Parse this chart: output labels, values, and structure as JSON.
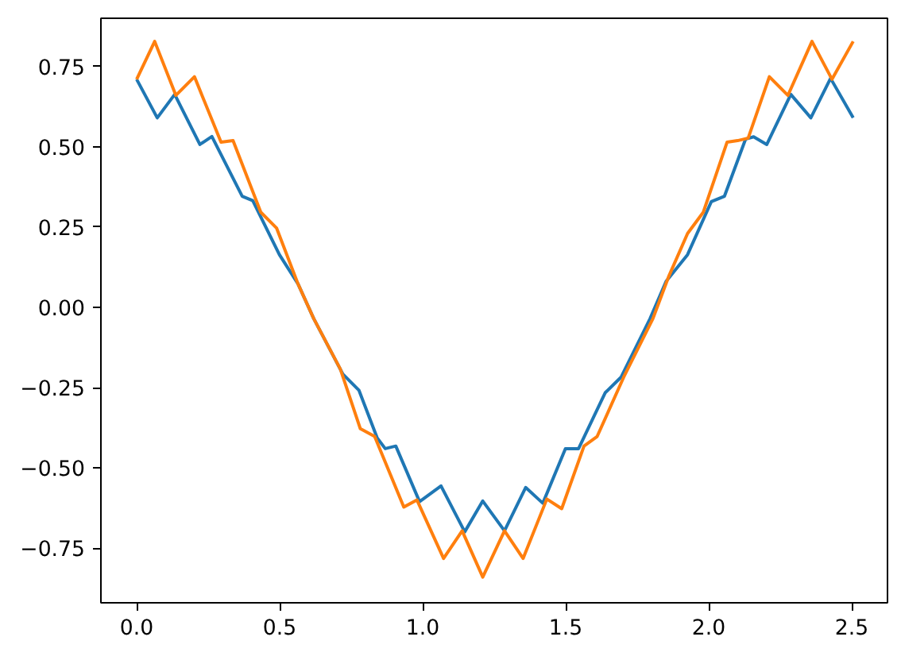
{
  "chart_data": {
    "type": "line",
    "xlim": [
      -0.125,
      2.625
    ],
    "ylim": [
      -0.92,
      0.9
    ],
    "xticks": [
      {
        "value": 0,
        "label": "0.0"
      },
      {
        "value": 0.5,
        "label": "0.5"
      },
      {
        "value": 1,
        "label": "1.0"
      },
      {
        "value": 1.5,
        "label": "1.5"
      },
      {
        "value": 2,
        "label": "2.0"
      },
      {
        "value": 2.5,
        "label": "2.5"
      }
    ],
    "yticks": [
      {
        "value": -0.75,
        "label": "−0.75"
      },
      {
        "value": -0.5,
        "label": "−0.50"
      },
      {
        "value": -0.25,
        "label": "−0.25"
      },
      {
        "value": 0,
        "label": "0.00"
      },
      {
        "value": 0.25,
        "label": "0.25"
      },
      {
        "value": 0.5,
        "label": "0.50"
      },
      {
        "value": 0.75,
        "label": "0.75"
      }
    ],
    "grid": false,
    "marker": "none",
    "line_style": "solid",
    "series": [
      {
        "color": "#1f77b4",
        "x": [
          0,
          0.072,
          0.133,
          0.221,
          0.263,
          0.369,
          0.406,
          0.499,
          0.564,
          0.619,
          0.721,
          0.777,
          0.841,
          0.869,
          0.906,
          0.989,
          1.064,
          1.147,
          1.21,
          1.286,
          1.36,
          1.42,
          1.499,
          1.545,
          1.638,
          1.694,
          1.795,
          1.851,
          1.926,
          2.009,
          2.055,
          2.129,
          2.157,
          2.203,
          2.287,
          2.357,
          2.426,
          2.505
        ],
        "values": [
          0.71,
          0.59,
          0.663,
          0.507,
          0.532,
          0.346,
          0.332,
          0.164,
          0.073,
          -0.035,
          -0.208,
          -0.258,
          -0.407,
          -0.44,
          -0.432,
          -0.605,
          -0.556,
          -0.699,
          -0.603,
          -0.696,
          -0.561,
          -0.61,
          -0.44,
          -0.44,
          -0.266,
          -0.217,
          -0.035,
          0.081,
          0.164,
          0.329,
          0.346,
          0.524,
          0.531,
          0.507,
          0.663,
          0.59,
          0.713,
          0.59
        ]
      },
      {
        "color": "#ff7f0e",
        "x": [
          0,
          0.063,
          0.137,
          0.202,
          0.295,
          0.337,
          0.434,
          0.489,
          0.564,
          0.619,
          0.712,
          0.782,
          0.832,
          0.934,
          0.98,
          1.073,
          1.138,
          1.21,
          1.286,
          1.351,
          1.434,
          1.486,
          1.564,
          1.61,
          1.703,
          1.805,
          1.861,
          1.926,
          1.981,
          2.064,
          2.101,
          2.138,
          2.212,
          2.277,
          2.361,
          2.431,
          2.505
        ],
        "values": [
          0.71,
          0.828,
          0.66,
          0.718,
          0.514,
          0.519,
          0.296,
          0.247,
          0.073,
          -0.035,
          -0.192,
          -0.378,
          -0.402,
          -0.622,
          -0.6,
          -0.782,
          -0.696,
          -0.84,
          -0.696,
          -0.782,
          -0.597,
          -0.627,
          -0.432,
          -0.402,
          -0.217,
          -0.035,
          0.098,
          0.23,
          0.296,
          0.514,
          0.519,
          0.527,
          0.718,
          0.66,
          0.828,
          0.71,
          0.828
        ]
      }
    ]
  }
}
